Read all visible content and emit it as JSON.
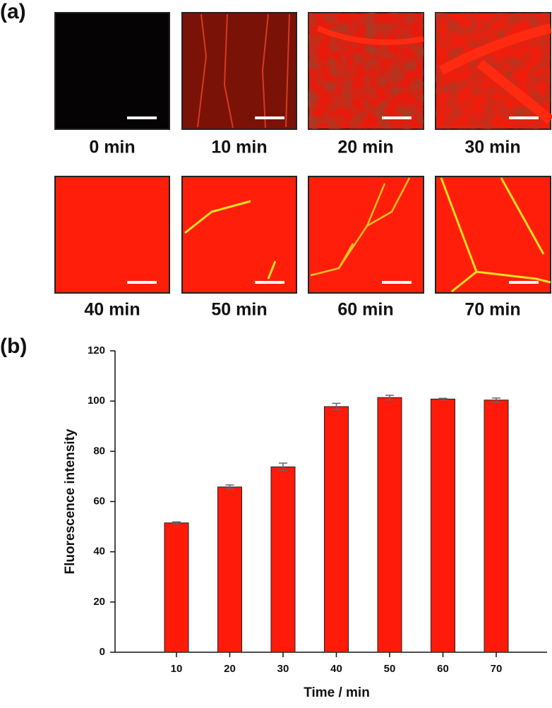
{
  "panel_a": {
    "label": "(a)",
    "images": [
      {
        "caption": "0 min"
      },
      {
        "caption": "10 min"
      },
      {
        "caption": "20 min"
      },
      {
        "caption": "30 min"
      },
      {
        "caption": "40 min"
      },
      {
        "caption": "50 min"
      },
      {
        "caption": "60 min"
      },
      {
        "caption": "70 min"
      }
    ]
  },
  "panel_b": {
    "label": "(b)"
  },
  "chart_data": {
    "type": "bar",
    "xlabel": "Time / min",
    "ylabel": "Fluorescence intensity",
    "categories": [
      "10",
      "20",
      "30",
      "40",
      "50",
      "60",
      "70"
    ],
    "values": [
      51.5,
      65.8,
      73.8,
      97.8,
      101.4,
      100.8,
      100.4
    ],
    "errors": [
      0.4,
      0.8,
      1.5,
      1.3,
      0.9,
      0.3,
      0.8
    ],
    "color": "#ff1a0a",
    "ylim": [
      0,
      120
    ],
    "yticks": [
      0,
      20,
      40,
      60,
      80,
      100,
      120
    ]
  }
}
